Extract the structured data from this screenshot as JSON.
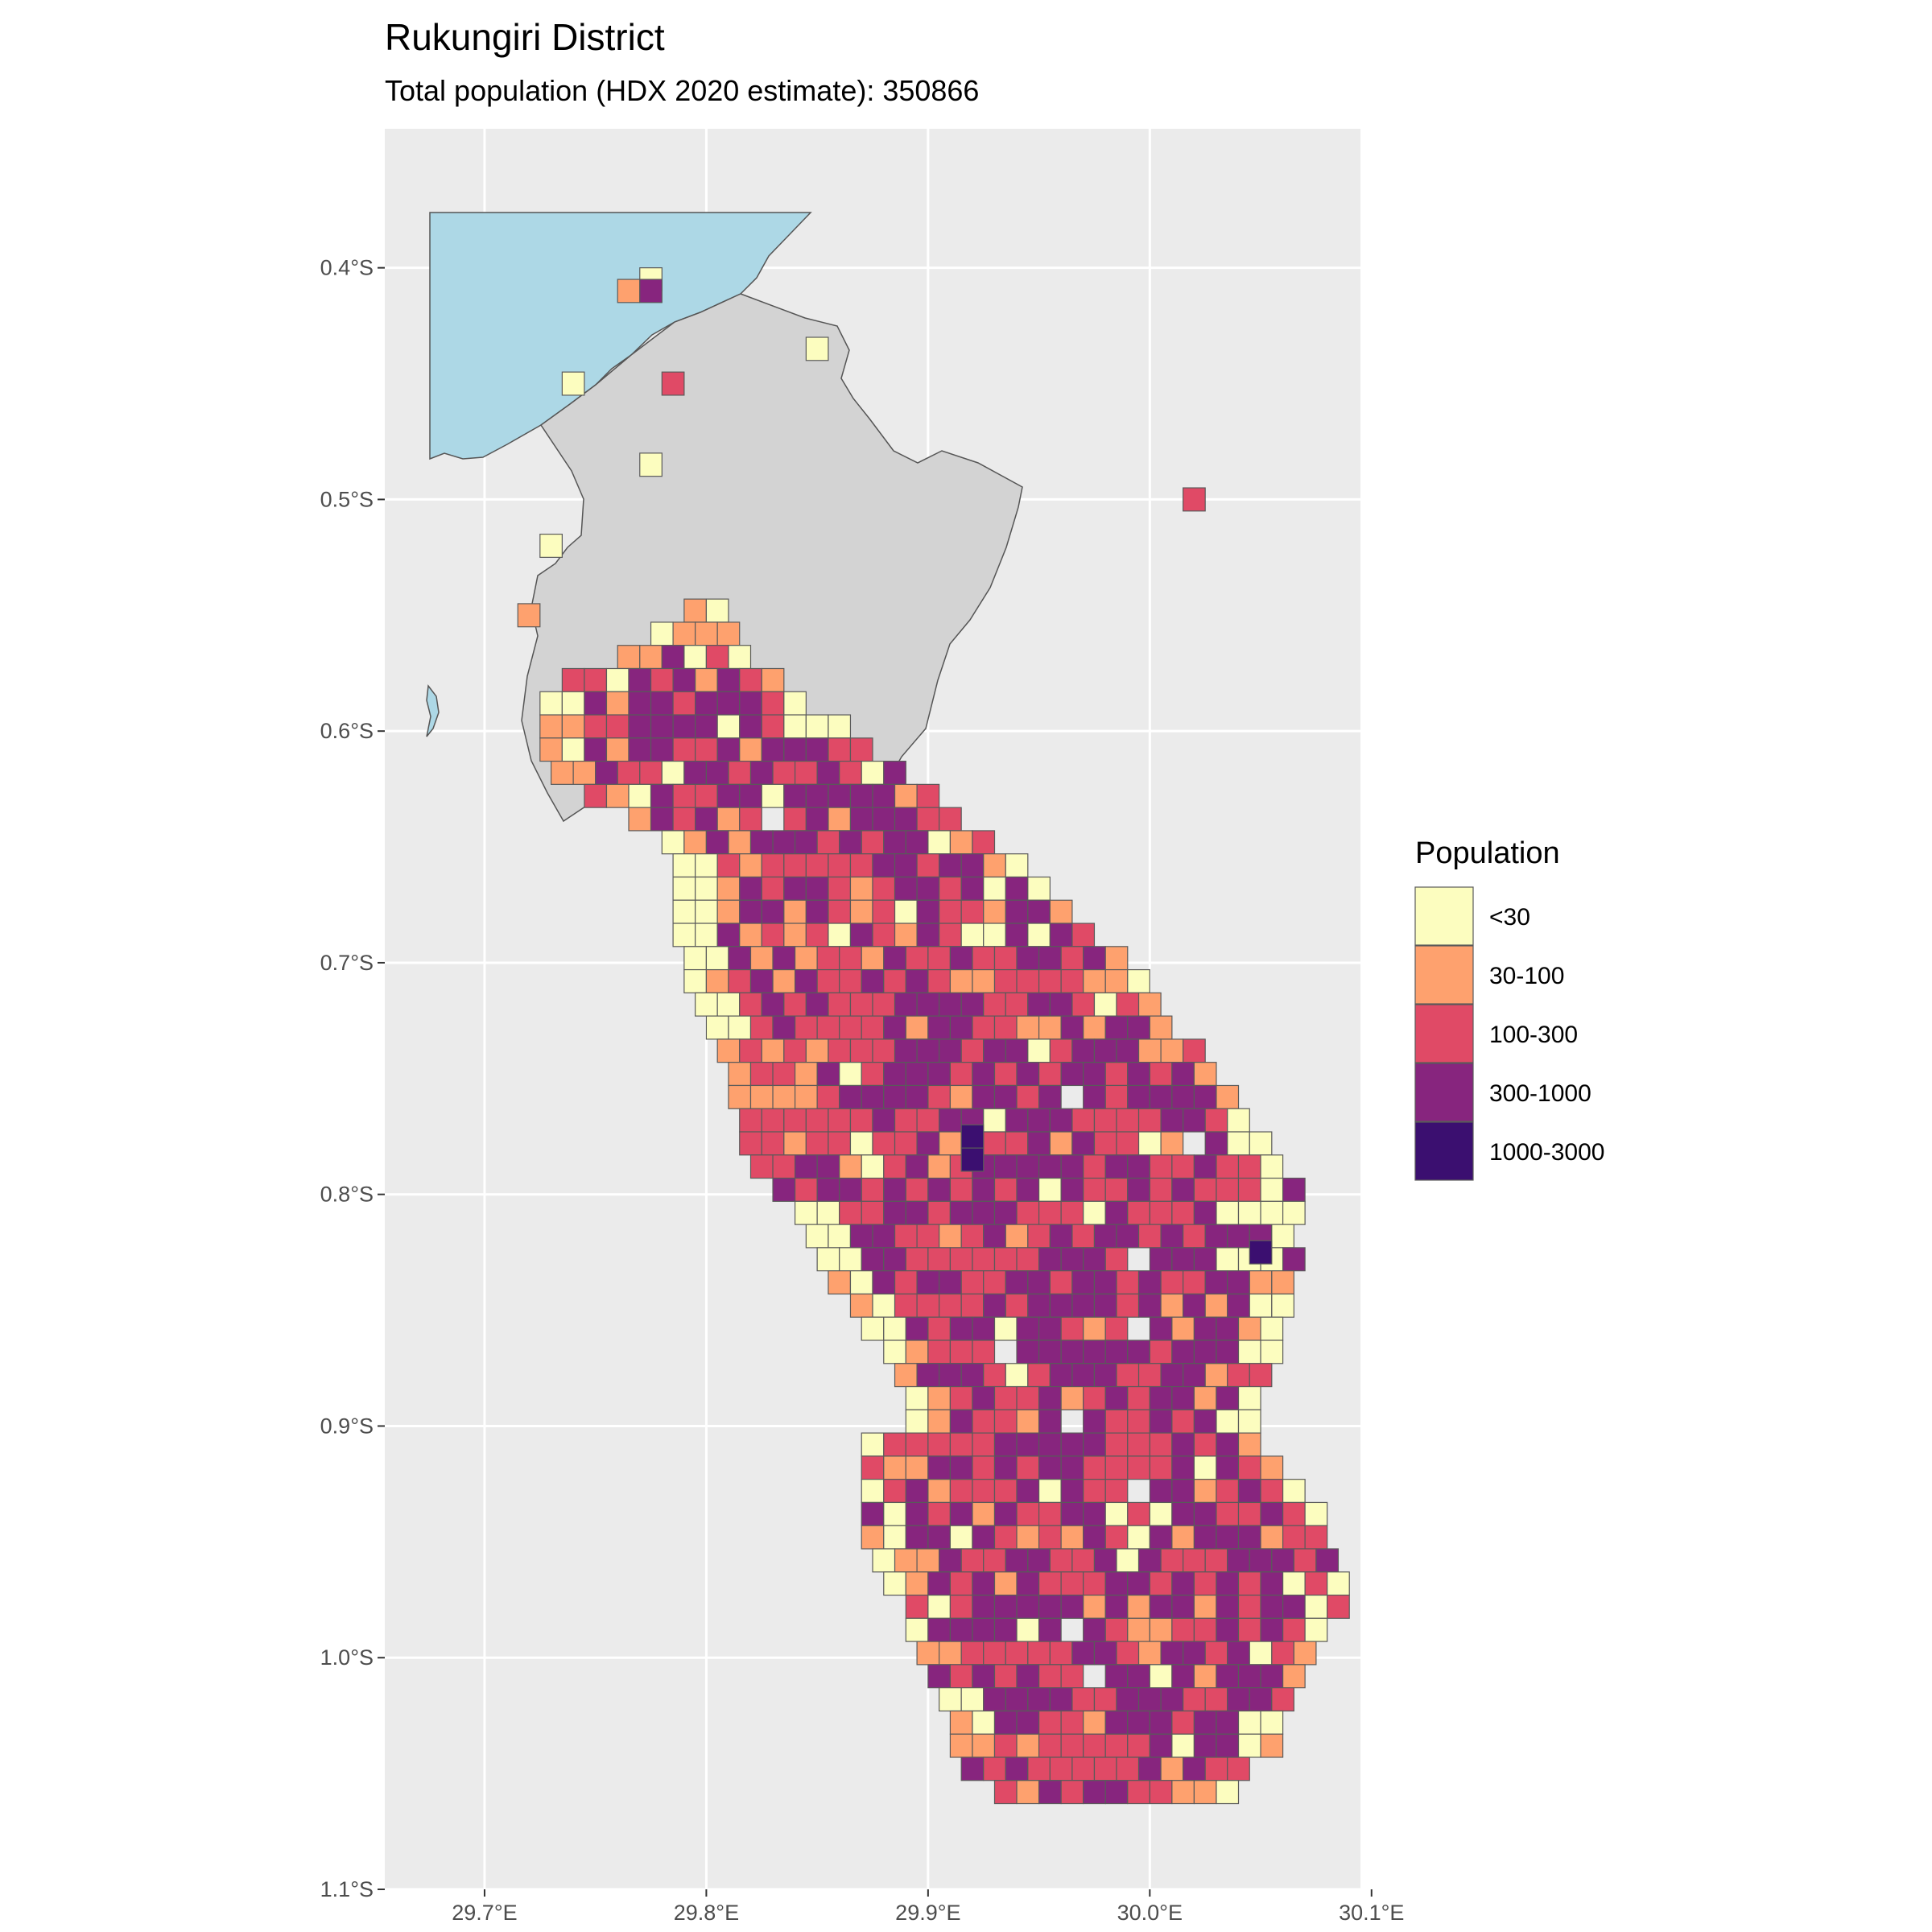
{
  "title": "Rukungiri District",
  "subtitle": "Total population (HDX 2020 estimate): 350866",
  "map": {
    "background_color": "#ebebeb",
    "grid_color": "#ffffff",
    "water_color": "#add8e6",
    "district_fill": "#d3d3d3",
    "outline_color": "#555555",
    "lon_range": [
      29.655,
      30.095
    ],
    "lat_range": [
      -1.1,
      -0.34
    ],
    "lon_ticks": [
      {
        "value": 29.7,
        "label": "29.7°E"
      },
      {
        "value": 29.8,
        "label": "29.8°E"
      },
      {
        "value": 29.9,
        "label": "29.9°E"
      },
      {
        "value": 30.0,
        "label": "30.0°E"
      },
      {
        "value": 30.1,
        "label": "30.1°E"
      }
    ],
    "lat_ticks": [
      {
        "value": -0.4,
        "label": "0.4°S"
      },
      {
        "value": -0.5,
        "label": "0.5°S"
      },
      {
        "value": -0.6,
        "label": "0.6°S"
      },
      {
        "value": -0.7,
        "label": "0.7°S"
      },
      {
        "value": -0.8,
        "label": "0.8°S"
      },
      {
        "value": -0.9,
        "label": "0.9°S"
      },
      {
        "value": -1.0,
        "label": "1.0°S"
      },
      {
        "value": -1.1,
        "label": "1.1°S"
      }
    ]
  },
  "legend": {
    "title": "Population",
    "items": [
      {
        "label": "<30",
        "color": "#fcfdbf"
      },
      {
        "label": "30-100",
        "color": "#fea16e"
      },
      {
        "label": "100-300",
        "color": "#e04a66"
      },
      {
        "label": "300-1000",
        "color": "#87257e"
      },
      {
        "label": "1000-3000",
        "color": "#3b0f70"
      }
    ]
  },
  "chart_data": {
    "type": "heatmap",
    "title": "Rukungiri District",
    "subtitle": "Total population (HDX 2020 estimate): 350866",
    "x_axis": "longitude",
    "y_axis": "latitude",
    "legend_title": "Population",
    "categories": [
      "<30",
      "30-100",
      "100-300",
      "300-1000",
      "1000-3000"
    ],
    "grid_on": true,
    "legend_placement": "right",
    "cell_size_deg": 0.01,
    "notable_cells": [
      {
        "lon": 29.775,
        "lat": -0.405,
        "category": "<30"
      },
      {
        "lon": 29.765,
        "lat": -0.41,
        "category": "30-100"
      },
      {
        "lon": 29.775,
        "lat": -0.41,
        "category": "300-1000"
      },
      {
        "lon": 29.85,
        "lat": -0.435,
        "category": "<30"
      },
      {
        "lon": 29.74,
        "lat": -0.45,
        "category": "<30"
      },
      {
        "lon": 29.785,
        "lat": -0.45,
        "category": "100-300"
      },
      {
        "lon": 29.775,
        "lat": -0.485,
        "category": "<30"
      },
      {
        "lon": 29.73,
        "lat": -0.52,
        "category": "<30"
      },
      {
        "lon": 30.02,
        "lat": -0.5,
        "category": "100-300"
      },
      {
        "lon": 29.72,
        "lat": -0.55,
        "category": "30-100"
      },
      {
        "lon": 29.92,
        "lat": -0.775,
        "category": "1000-3000"
      },
      {
        "lon": 29.92,
        "lat": -0.785,
        "category": "1000-3000"
      },
      {
        "lon": 30.05,
        "lat": -0.825,
        "category": "1000-3000"
      }
    ]
  }
}
